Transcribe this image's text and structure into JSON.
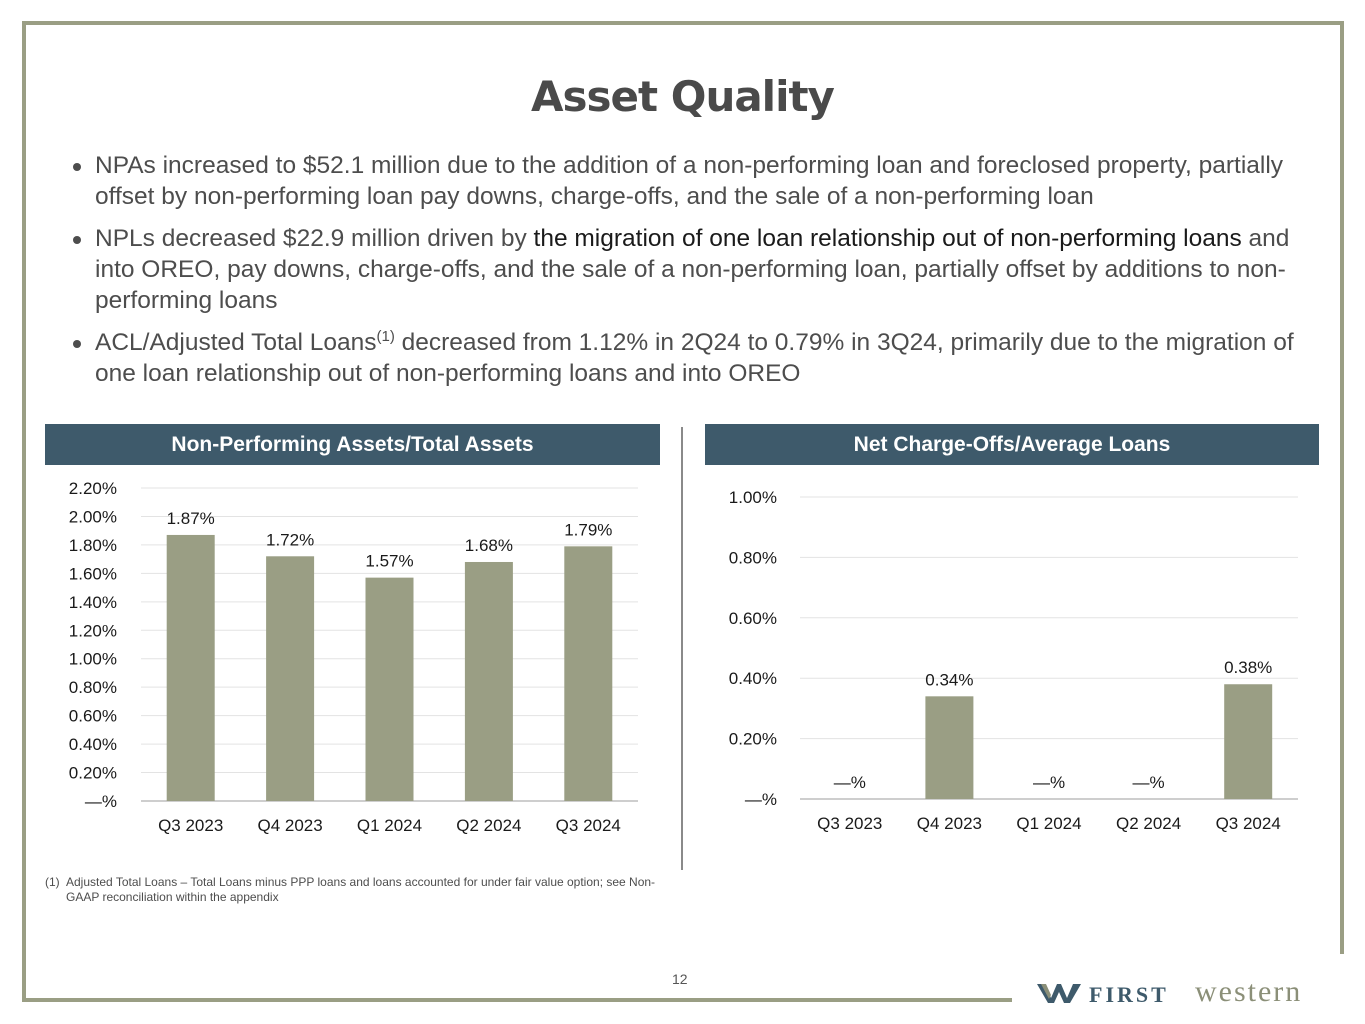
{
  "slide": {
    "title": "Asset Quality",
    "page_number": "12",
    "bullets": [
      {
        "text": "NPAs increased to $52.1 million due to the addition of a non-performing loan and foreclosed property, partially offset by non-performing loan pay downs, charge-offs, and the sale of a non-performing loan"
      },
      {
        "text_a": "NPLs decreased $22.9 million driven by ",
        "text_b": "the migration of one loan relationship out of non-performing loans",
        "text_c": " and into OREO, pay downs, charge-offs, and the sale of a non-performing loan, partially offset by additions to non-performing loans"
      },
      {
        "text_a": "ACL/Adjusted Total Loans",
        "sup": "(1)",
        "text_b": " decreased from 1.12% in 2Q24 to 0.79% in 3Q24, primarily due to the migration of one loan relationship out of non-performing loans and into OREO"
      }
    ],
    "footnote": {
      "number": "(1)",
      "text": "Adjusted Total Loans –  Total Loans minus PPP loans and loans accounted for under fair value option; see Non-GAAP reconciliation within the appendix"
    },
    "logo": {
      "first": "FIRST",
      "western": "western"
    }
  },
  "colors": {
    "bar": "#9a9e84",
    "header": "#3e5a6b",
    "frame": "#9a9e84"
  },
  "chart_data": [
    {
      "type": "bar",
      "title": "Non-Performing Assets/Total Assets",
      "categories": [
        "Q3 2023",
        "Q4 2023",
        "Q1 2024",
        "Q2 2024",
        "Q3 2024"
      ],
      "values": [
        1.87,
        1.72,
        1.57,
        1.68,
        1.79
      ],
      "data_labels": [
        "1.87%",
        "1.72%",
        "1.57%",
        "1.68%",
        "1.79%"
      ],
      "y_ticks": [
        0,
        0.2,
        0.4,
        0.6,
        0.8,
        1.0,
        1.2,
        1.4,
        1.6,
        1.8,
        2.0,
        2.2
      ],
      "y_tick_labels": [
        "—%",
        "0.20%",
        "0.40%",
        "0.60%",
        "0.80%",
        "1.00%",
        "1.20%",
        "1.40%",
        "1.60%",
        "1.80%",
        "2.00%",
        "2.20%"
      ],
      "ylim": [
        0,
        2.2
      ],
      "grid": true,
      "xlabel": "",
      "ylabel": ""
    },
    {
      "type": "bar",
      "title": "Net Charge-Offs/Average Loans",
      "categories": [
        "Q3 2023",
        "Q4 2023",
        "Q1 2024",
        "Q2 2024",
        "Q3 2024"
      ],
      "values": [
        0,
        0.34,
        0,
        0,
        0.38
      ],
      "data_labels": [
        "—%",
        "0.34%",
        "—%",
        "—%",
        "0.38%"
      ],
      "y_ticks": [
        0,
        0.2,
        0.4,
        0.6,
        0.8,
        1.0
      ],
      "y_tick_labels": [
        "—%",
        "0.20%",
        "0.40%",
        "0.60%",
        "0.80%",
        "1.00%"
      ],
      "ylim": [
        0,
        1.0
      ],
      "grid": true,
      "xlabel": "",
      "ylabel": ""
    }
  ]
}
